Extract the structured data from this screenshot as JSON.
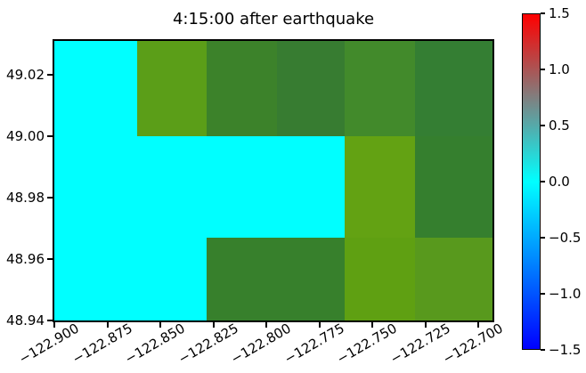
{
  "figure": {
    "background": "#FFFFFF"
  },
  "chart_data": {
    "type": "heatmap",
    "title": "4:15:00 after earthquake",
    "xlabel": "",
    "ylabel": "",
    "grid": false,
    "x_axis": {
      "range": [
        -122.9,
        -122.6933
      ],
      "tick_rotation_deg": 30,
      "ticks": [
        {
          "value": -122.9,
          "label": "−122.900"
        },
        {
          "value": -122.875,
          "label": "−122.875"
        },
        {
          "value": -122.85,
          "label": "−122.850"
        },
        {
          "value": -122.825,
          "label": "−122.825"
        },
        {
          "value": -122.8,
          "label": "−122.800"
        },
        {
          "value": -122.775,
          "label": "−122.775"
        },
        {
          "value": -122.75,
          "label": "−122.750"
        },
        {
          "value": -122.725,
          "label": "−122.725"
        },
        {
          "value": -122.7,
          "label": "−122.700"
        }
      ]
    },
    "y_axis": {
      "range": [
        48.94,
        49.031
      ],
      "ticks": [
        {
          "value": 49.02,
          "label": "49.02"
        },
        {
          "value": 49.0,
          "label": "49.00"
        },
        {
          "value": 48.98,
          "label": "48.98"
        },
        {
          "value": 48.96,
          "label": "48.96"
        },
        {
          "value": 48.94,
          "label": "48.94"
        }
      ]
    },
    "heatmap": {
      "lon_edges": [
        -122.9,
        -122.861,
        -122.828,
        -122.795,
        -122.763,
        -122.73,
        -122.6933
      ],
      "lat_edges_top_to_bottom": [
        49.031,
        49.0,
        48.967,
        48.94
      ],
      "cell_colors_rows_top_to_bottom": [
        [
          "#00FFFF",
          "#5B9E18",
          "#3C822A",
          "#377C31",
          "#428A2B",
          "#347E33"
        ],
        [
          "#00FFFF",
          "#00FFFF",
          "#00FFFF",
          "#00FFFF",
          "#63A213",
          "#357F2E"
        ],
        [
          "#00FFFF",
          "#00FFFF",
          "#37802C",
          "#37802C",
          "#5FA012",
          "#58991D"
        ]
      ]
    },
    "colorbar": {
      "range": [
        -1.5,
        1.5
      ],
      "ticks": [
        {
          "value": 1.5,
          "label": "1.5"
        },
        {
          "value": 1.0,
          "label": "1.0"
        },
        {
          "value": 0.5,
          "label": "0.5"
        },
        {
          "value": 0.0,
          "label": "0.0"
        },
        {
          "value": -0.5,
          "label": "−0.5"
        },
        {
          "value": -1.0,
          "label": "−1.0"
        },
        {
          "value": -1.5,
          "label": "−1.5"
        }
      ],
      "gradient_stops_bottom_to_top": [
        {
          "pos": 0,
          "color": "#0000FF"
        },
        {
          "pos": 50,
          "color": "#00FFFF"
        },
        {
          "pos": 100,
          "color": "#FF0000"
        }
      ]
    }
  }
}
